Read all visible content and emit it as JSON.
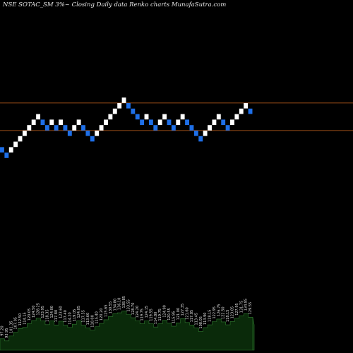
{
  "header": {
    "title": "NSE SOTAC_SM 3%~  Closing Daily data  Renko  charts MunafaSutra.com"
  },
  "colors": {
    "background": "#000000",
    "up_brick": "#ffffff",
    "down_brick": "#1e6fe8",
    "level_line": "#c8641e",
    "volume_fill": "#0a2a0a",
    "volume_edge": "#2f7a2f",
    "label_text": "#e0e0e0"
  },
  "chart_data": {
    "type": "renko",
    "brick_size": "3%",
    "bricks": [
      {
        "dir": "down",
        "level": 43
      },
      {
        "dir": "down",
        "level": 42
      },
      {
        "dir": "up",
        "level": 43
      },
      {
        "dir": "up",
        "level": 44
      },
      {
        "dir": "up",
        "level": 45
      },
      {
        "dir": "up",
        "level": 46
      },
      {
        "dir": "up",
        "level": 47
      },
      {
        "dir": "up",
        "level": 48
      },
      {
        "dir": "up",
        "level": 49
      },
      {
        "dir": "down",
        "level": 48
      },
      {
        "dir": "down",
        "level": 47
      },
      {
        "dir": "up",
        "level": 48
      },
      {
        "dir": "down",
        "level": 47
      },
      {
        "dir": "up",
        "level": 48
      },
      {
        "dir": "down",
        "level": 47
      },
      {
        "dir": "down",
        "level": 46
      },
      {
        "dir": "up",
        "level": 47
      },
      {
        "dir": "up",
        "level": 48
      },
      {
        "dir": "down",
        "level": 47
      },
      {
        "dir": "down",
        "level": 46
      },
      {
        "dir": "down",
        "level": 45
      },
      {
        "dir": "up",
        "level": 46
      },
      {
        "dir": "up",
        "level": 47
      },
      {
        "dir": "up",
        "level": 48
      },
      {
        "dir": "up",
        "level": 49
      },
      {
        "dir": "up",
        "level": 50
      },
      {
        "dir": "up",
        "level": 51
      },
      {
        "dir": "up",
        "level": 52
      },
      {
        "dir": "down",
        "level": 51
      },
      {
        "dir": "down",
        "level": 50
      },
      {
        "dir": "down",
        "level": 49
      },
      {
        "dir": "down",
        "level": 48
      },
      {
        "dir": "up",
        "level": 49
      },
      {
        "dir": "down",
        "level": 48
      },
      {
        "dir": "down",
        "level": 47
      },
      {
        "dir": "up",
        "level": 48
      },
      {
        "dir": "up",
        "level": 49
      },
      {
        "dir": "down",
        "level": 48
      },
      {
        "dir": "down",
        "level": 47
      },
      {
        "dir": "up",
        "level": 48
      },
      {
        "dir": "up",
        "level": 49
      },
      {
        "dir": "down",
        "level": 48
      },
      {
        "dir": "down",
        "level": 47
      },
      {
        "dir": "down",
        "level": 46
      },
      {
        "dir": "down",
        "level": 45
      },
      {
        "dir": "up",
        "level": 46
      },
      {
        "dir": "up",
        "level": 47
      },
      {
        "dir": "up",
        "level": 48
      },
      {
        "dir": "up",
        "level": 49
      },
      {
        "dir": "down",
        "level": 48
      },
      {
        "dir": "down",
        "level": 47
      },
      {
        "dir": "up",
        "level": 48
      },
      {
        "dir": "up",
        "level": 49
      },
      {
        "dir": "up",
        "level": 50
      },
      {
        "dir": "up",
        "level": 51
      },
      {
        "dir": "down",
        "level": 50
      }
    ],
    "levels": [
      51.5,
      46.5
    ],
    "volume_labels": [
      "97.20",
      "93.95",
      "101.35",
      "107.05",
      "112.50",
      "114.15",
      "120.05",
      "124.50",
      "128.25",
      "123.95",
      "118.35",
      "124.00",
      "117.80",
      "123.60",
      "117.40",
      "114.20",
      "119.05",
      "124.05",
      "117.55",
      "113.60",
      "110.00",
      "115.40",
      "120.20",
      "125.65",
      "130.55",
      "134.80",
      "136.10",
      "138.85",
      "133.55",
      "128.70",
      "124.20",
      "119.75",
      "124.15",
      "119.55",
      "114.80",
      "119.75",
      "124.90",
      "120.55",
      "115.95",
      "121.00",
      "127.35",
      "121.60",
      "117.85",
      "113.45",
      "108.05",
      "113.90",
      "118.15",
      "122.95",
      "126.75",
      "122.50",
      "118.15",
      "123.05",
      "127.95",
      "131.75",
      "134.85",
      "129.55"
    ]
  }
}
